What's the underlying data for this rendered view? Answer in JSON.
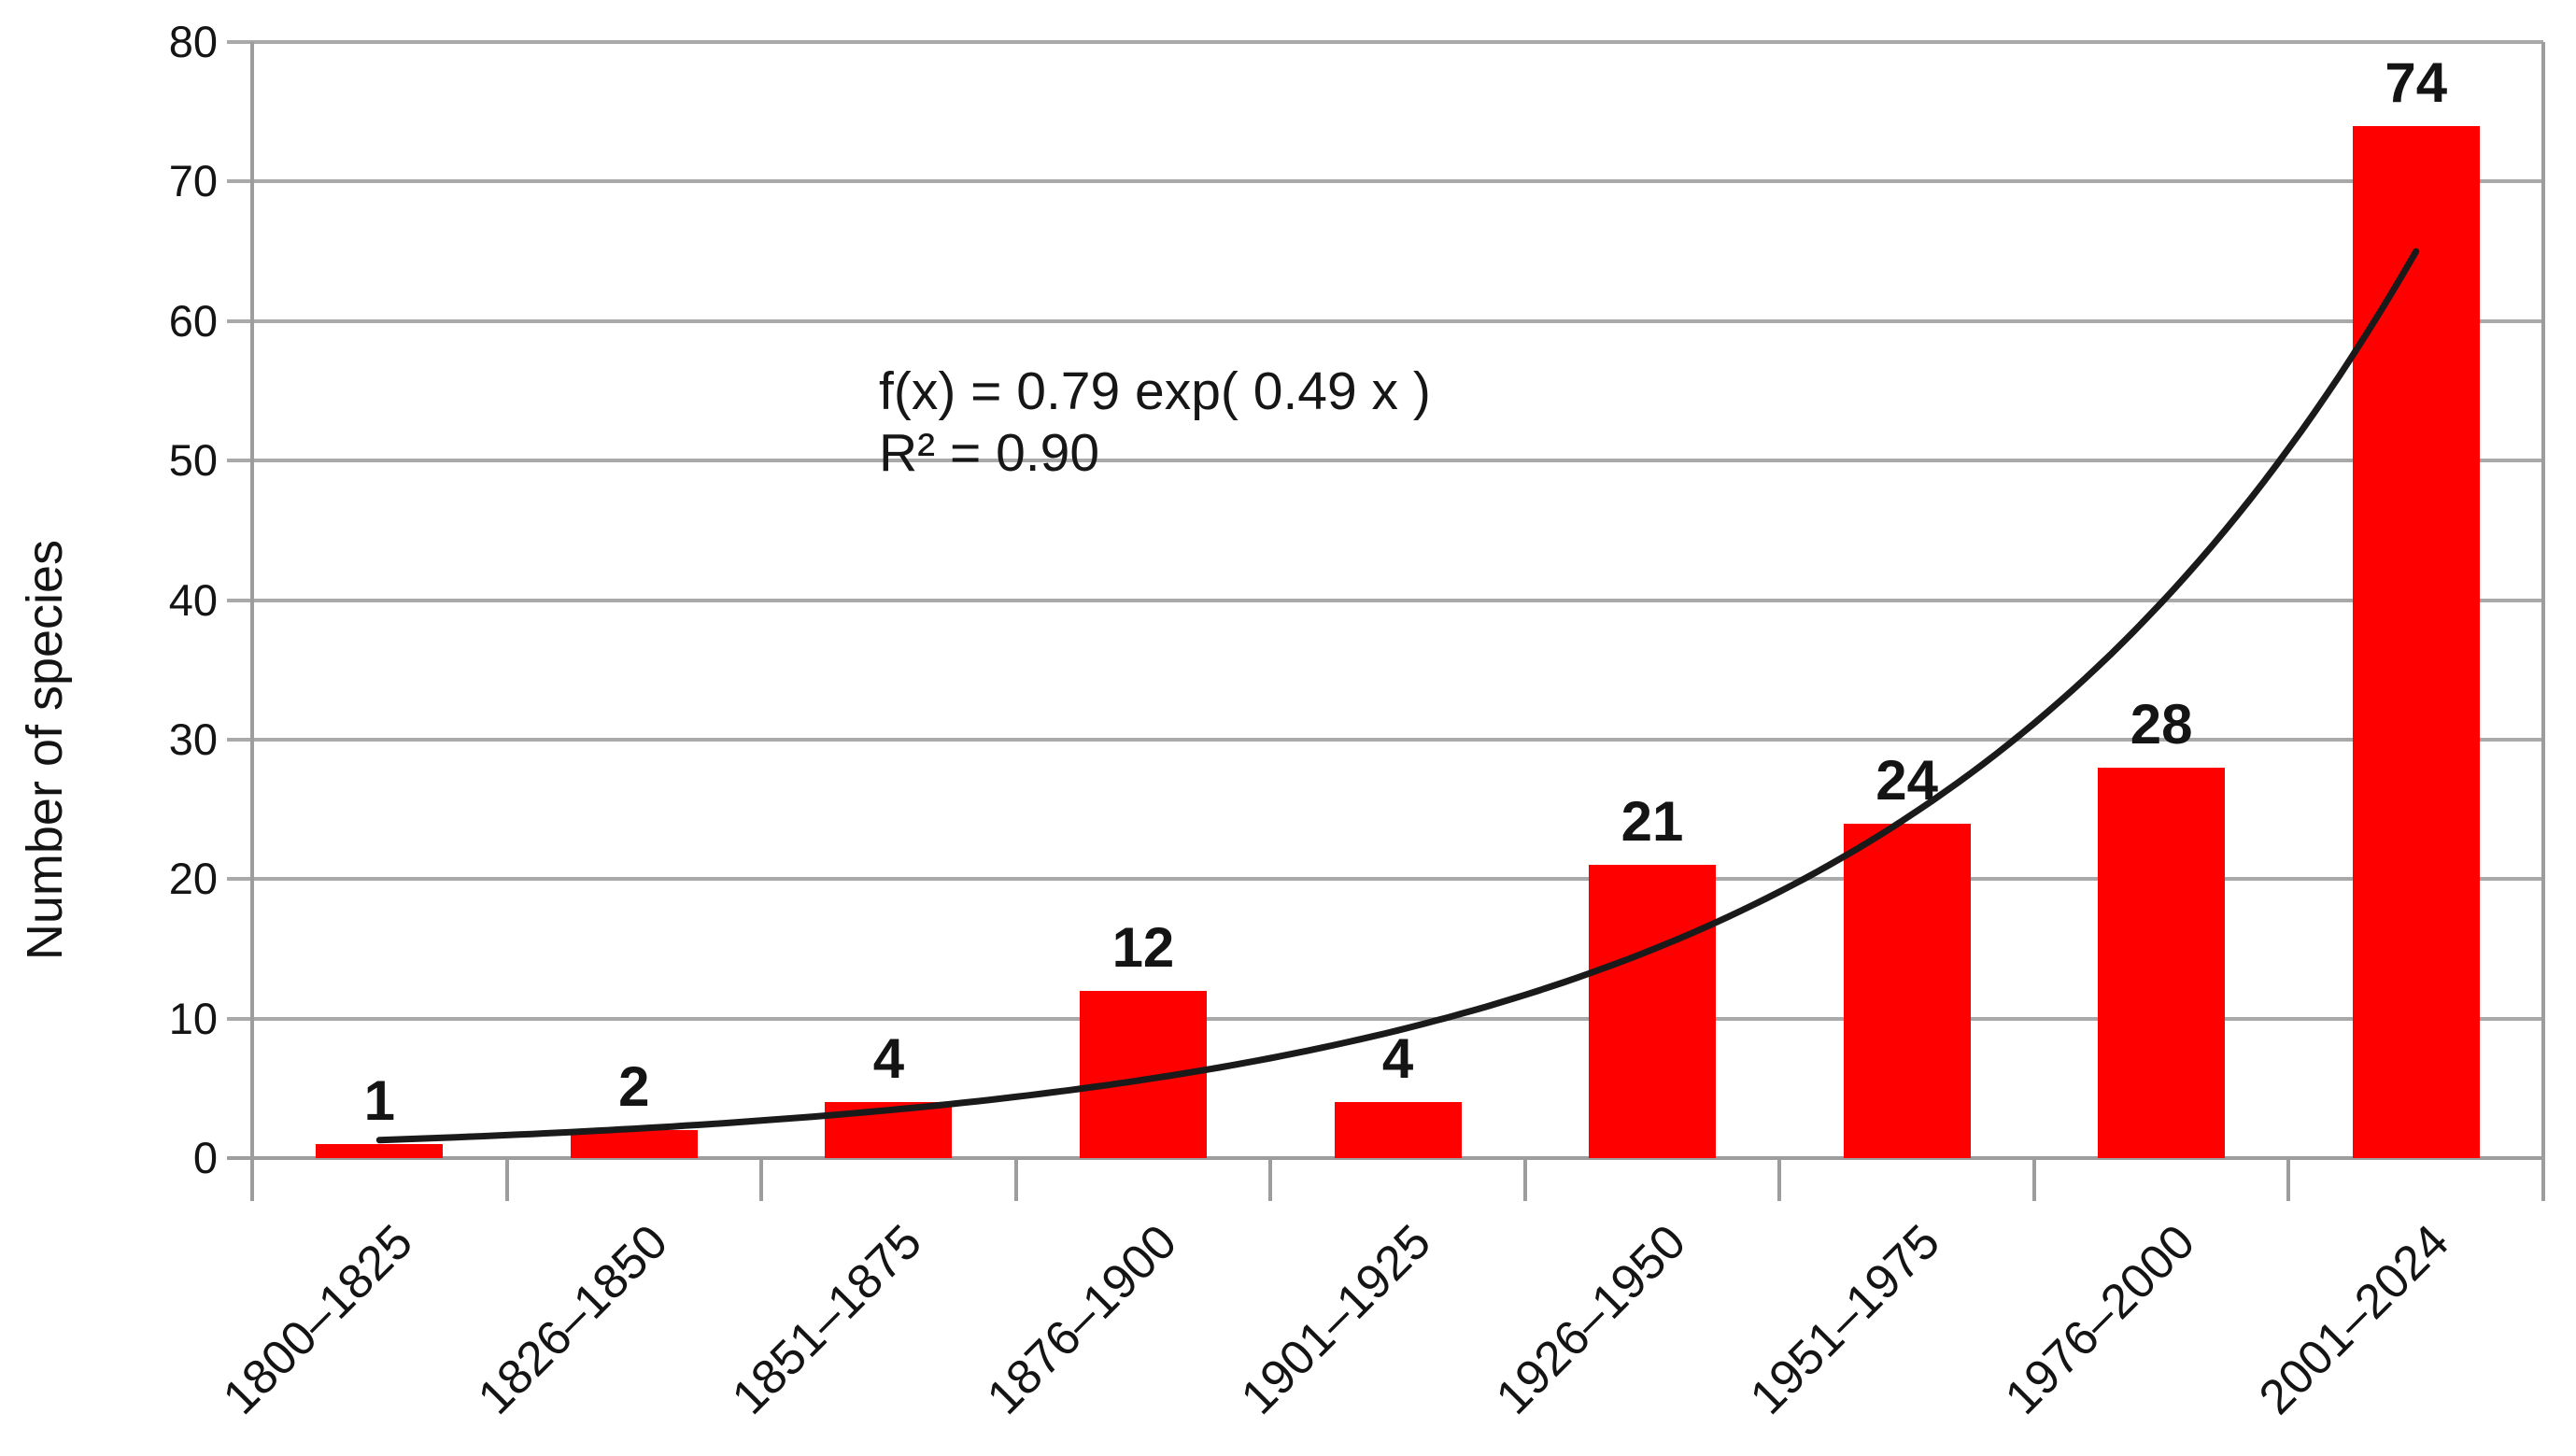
{
  "chart_data": {
    "type": "bar",
    "title": "",
    "xlabel": "",
    "ylabel": "Number of species",
    "categories": [
      "1800–1825",
      "1826–1850",
      "1851–1875",
      "1876–1900",
      "1901–1925",
      "1926–1950",
      "1951–1975",
      "1976–2000",
      "2001–2024"
    ],
    "values": [
      1,
      2,
      4,
      12,
      4,
      21,
      24,
      28,
      74
    ],
    "data_labels": true,
    "ylim": [
      0,
      80
    ],
    "yticks": [
      0,
      10,
      20,
      30,
      40,
      50,
      60,
      70,
      80
    ],
    "grid": true,
    "legend": "none",
    "trendline": {
      "type": "exponential",
      "a": 0.79,
      "b": 0.49,
      "x_start": 1,
      "x_end": 9,
      "equation_line1": "f(x) = 0.79 exp( 0.49 x )",
      "equation_line2": "R² = 0.90"
    },
    "colors": {
      "bar": "#fe0000",
      "grid": "#a9a9a9",
      "axis": "#9d9d9d",
      "text": "#141414",
      "trendline": "#1a1a1a",
      "background": "#ffffff"
    }
  }
}
